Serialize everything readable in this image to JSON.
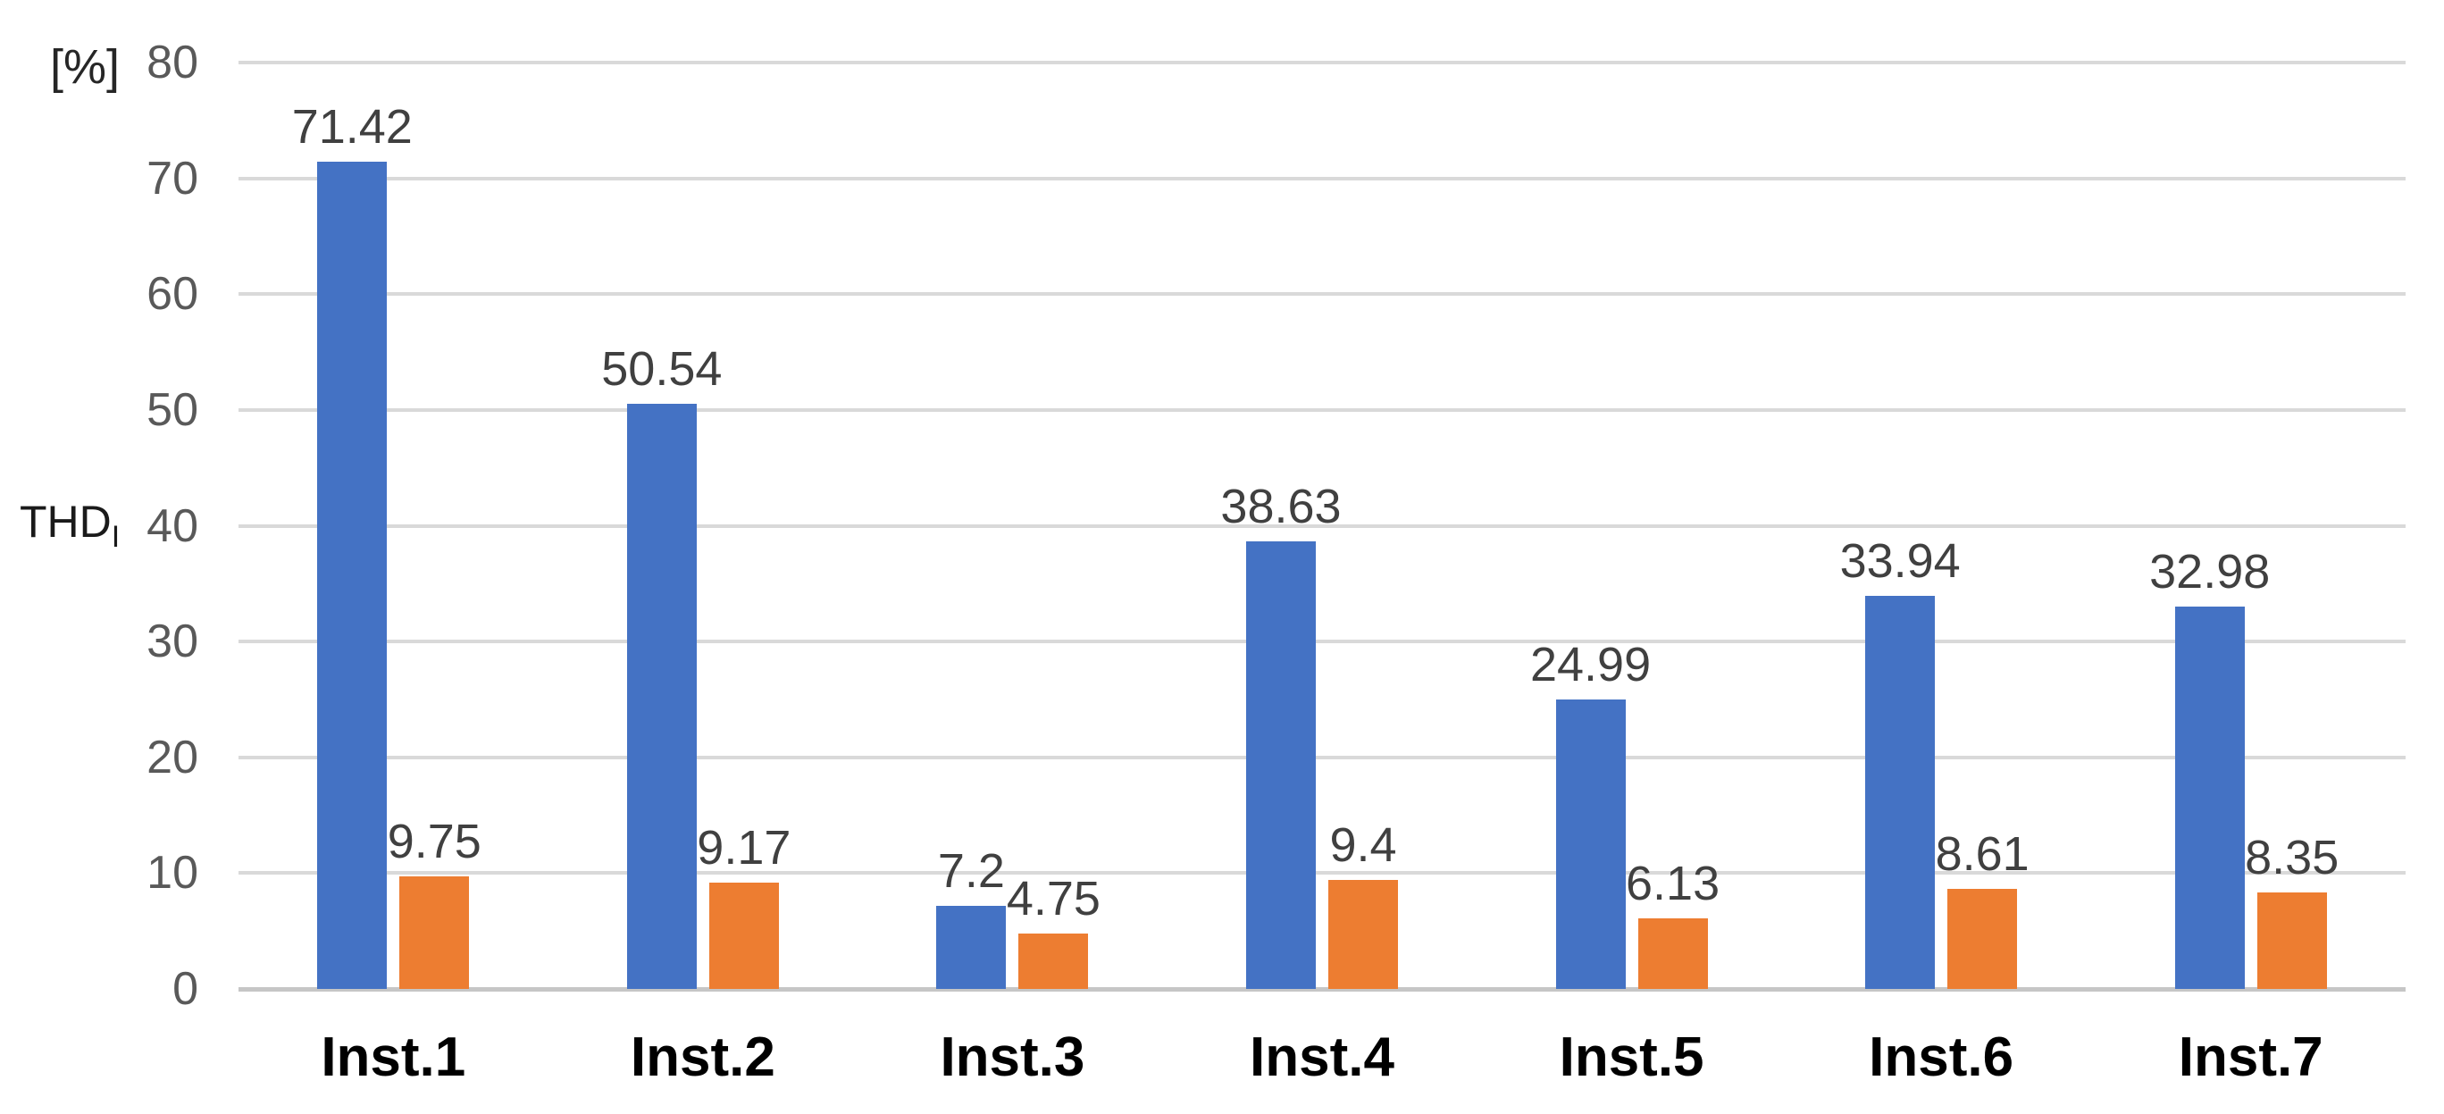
{
  "chart_data": {
    "type": "bar",
    "title": "",
    "y_unit_label": "[%]",
    "ylabel": "THD",
    "ylabel_subscript": "I",
    "xlabel": "",
    "categories": [
      "Inst.1",
      "Inst.2",
      "Inst.3",
      "Inst.4",
      "Inst.5",
      "Inst.6",
      "Inst.7"
    ],
    "series": [
      {
        "name": "series-blue",
        "color": "#4472C4",
        "values": [
          71.42,
          50.54,
          7.2,
          38.63,
          24.99,
          33.94,
          32.98
        ],
        "labels": [
          "71.42",
          "50.54",
          "7.2",
          "38.63",
          "24.99",
          "33.94",
          "32.98"
        ]
      },
      {
        "name": "series-orange",
        "color": "#ED7D31",
        "values": [
          9.75,
          9.17,
          4.75,
          9.4,
          6.13,
          8.61,
          8.35
        ],
        "labels": [
          "9.75",
          "9.17",
          "4.75",
          "9.4",
          "6.13",
          "8.61",
          "8.35"
        ]
      }
    ],
    "ylim": [
      0,
      80
    ],
    "yticks": [
      0,
      10,
      20,
      30,
      40,
      50,
      60,
      70,
      80
    ],
    "grid": true,
    "legend_position": "none",
    "colors": {
      "gridline": "#d9d9d9",
      "axis_line": "#c6c6c6",
      "tick_label": "#595959",
      "data_label": "#404040",
      "category_label": "#000000",
      "background": "#ffffff"
    }
  }
}
